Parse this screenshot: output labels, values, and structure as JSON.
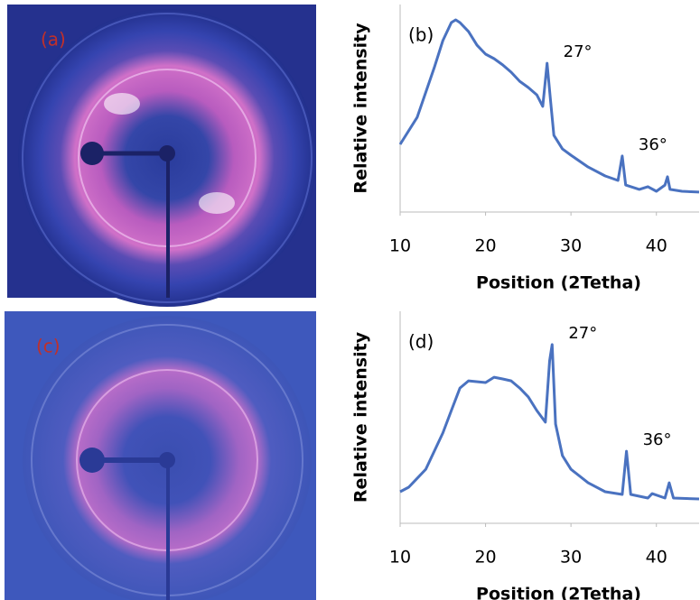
{
  "panels": [
    {
      "label": "(a)"
    },
    {
      "label": "(c)"
    }
  ],
  "chart_data": [
    {
      "type": "line",
      "title": "(b)",
      "x_label": "Position (2Tetha)",
      "y_label": "Relative intensity",
      "color": "#4a72c0",
      "x": [
        10,
        12,
        14,
        15,
        16,
        16.5,
        17,
        18,
        19,
        20,
        21,
        22,
        23,
        24,
        25,
        26,
        26.7,
        27.2,
        27.6,
        28,
        29,
        30,
        32,
        34,
        35.5,
        36,
        36.4,
        38,
        39,
        40,
        41,
        41.3,
        41.6,
        43,
        45
      ],
      "values": [
        32.6,
        45.7,
        69.6,
        82.6,
        91.3,
        92.6,
        91.3,
        87,
        80.4,
        76.1,
        73.9,
        70.9,
        67.4,
        63,
        60,
        56.5,
        50.9,
        71.7,
        54.3,
        37,
        30.4,
        27.4,
        21.7,
        17.4,
        15.2,
        27,
        13,
        10.9,
        12.2,
        10,
        13,
        17,
        10.9,
        10,
        9.6
      ],
      "xlim": [
        10,
        45
      ],
      "ylim": [
        0,
        100
      ],
      "xticks": [
        10,
        20,
        30,
        40
      ],
      "annotations": [
        {
          "text": "27°",
          "x": 27.2,
          "y": 71.7
        },
        {
          "text": "36°",
          "x": 36,
          "y": 27
        }
      ]
    },
    {
      "type": "line",
      "title": "(d)",
      "x_label": "Position (2Tetha)",
      "y_label": "Relative intensity",
      "color": "#4a72c0",
      "x": [
        10,
        11,
        11.5,
        13,
        14,
        15,
        16,
        17,
        18,
        20,
        21,
        22,
        23,
        24,
        25,
        26,
        27,
        27.5,
        27.8,
        28.2,
        29,
        30,
        32,
        34,
        36,
        36.5,
        37,
        39,
        39.5,
        41,
        41.5,
        42,
        45
      ],
      "values": [
        14.9,
        17,
        19.1,
        25.5,
        34,
        42.6,
        53.2,
        63.8,
        67.2,
        66.4,
        68.9,
        68.1,
        67.2,
        63.8,
        59.6,
        53.2,
        47.7,
        76.6,
        84.3,
        46.8,
        31.9,
        25.5,
        19.1,
        14.9,
        13.6,
        34,
        13.6,
        11.9,
        14,
        11.9,
        19.1,
        11.9,
        11.5
      ],
      "xlim": [
        10,
        45
      ],
      "ylim": [
        0,
        100
      ],
      "xticks": [
        10,
        20,
        30,
        40
      ],
      "annotations": [
        {
          "text": "27°",
          "x": 27.8,
          "y": 84.3
        },
        {
          "text": "36°",
          "x": 36.5,
          "y": 34
        }
      ]
    }
  ]
}
